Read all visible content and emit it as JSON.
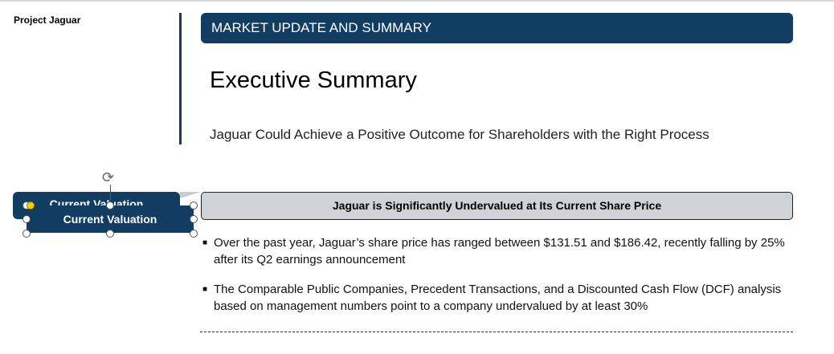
{
  "header": {
    "project": "Project Jaguar",
    "banner": "MARKET UPDATE AND SUMMARY",
    "title": "Executive Summary",
    "subtitle": "Jaguar Could Achieve a Positive Outcome for Shareholders with the Right Process"
  },
  "shapes": {
    "back_label": "Current Valuation",
    "front_label": "Current Valuation"
  },
  "section": {
    "heading": "Jaguar is Significantly Undervalued at Its Current Share Price",
    "bullets": [
      "Over the past year, Jaguar’s share price has ranged between $131.51 and $186.42, recently falling by 25% after its Q2 earnings announcement",
      "The Comparable Public Companies, Precedent Transactions, and a Discounted Cash Flow (DCF) analysis based on management numbers point to a company undervalued by at least 30%"
    ]
  },
  "colors": {
    "navy": "#123d63",
    "grey": "#cfd2d7",
    "handle_yellow": "#f5d000"
  }
}
